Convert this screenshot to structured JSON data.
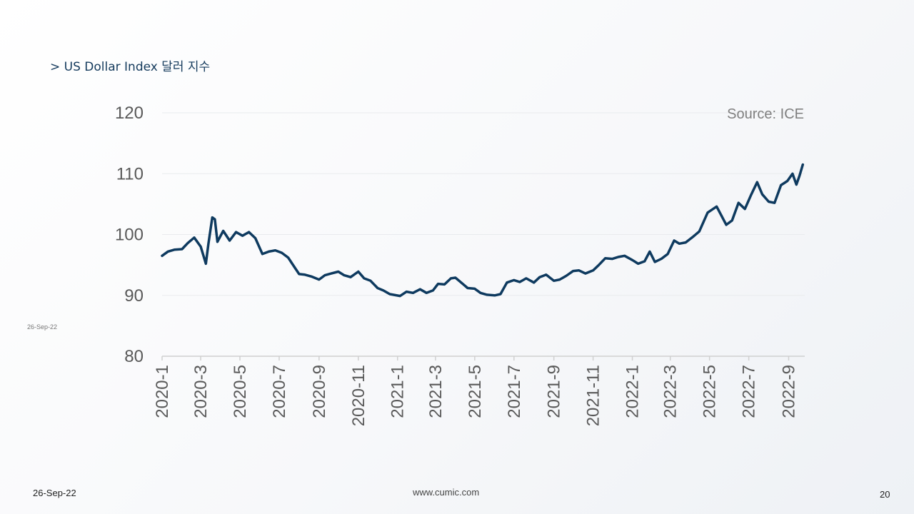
{
  "slide": {
    "title": "> US Dollar Index  달러 지수",
    "side_date": "26-Sep-22",
    "footer_date": "26-Sep-22",
    "footer_site": "www.cumic.com",
    "page_number": "20"
  },
  "colors": {
    "line": "#0e3a5f",
    "grid": "#e9ebee",
    "axis": "#d0d0d0",
    "title": "#143a5c"
  },
  "chart_data": {
    "type": "line",
    "title": "",
    "xlabel": "",
    "ylabel": "",
    "source": "Source: ICE",
    "ylim": [
      80,
      120
    ],
    "yticks": [
      "80",
      "90",
      "100",
      "110",
      "120"
    ],
    "grid": true,
    "xticks": [
      "2020-1",
      "2020-3",
      "2020-5",
      "2020-7",
      "2020-9",
      "2020-11",
      "2021-1",
      "2021-3",
      "2021-5",
      "2021-7",
      "2021-9",
      "2021-11",
      "2022-1",
      "2022-3",
      "2022-5",
      "2022-7",
      "2022-9"
    ],
    "series": [
      {
        "points": [
          [
            "2020-01-01",
            96.5
          ],
          [
            "2020-01-10",
            97.2
          ],
          [
            "2020-01-20",
            97.5
          ],
          [
            "2020-02-01",
            97.6
          ],
          [
            "2020-02-10",
            98.6
          ],
          [
            "2020-02-20",
            99.5
          ],
          [
            "2020-03-01",
            98.0
          ],
          [
            "2020-03-09",
            95.2
          ],
          [
            "2020-03-13",
            98.5
          ],
          [
            "2020-03-19",
            102.8
          ],
          [
            "2020-03-23",
            102.5
          ],
          [
            "2020-03-27",
            98.8
          ],
          [
            "2020-04-05",
            100.6
          ],
          [
            "2020-04-15",
            99.0
          ],
          [
            "2020-04-25",
            100.4
          ],
          [
            "2020-05-05",
            99.8
          ],
          [
            "2020-05-15",
            100.4
          ],
          [
            "2020-05-25",
            99.4
          ],
          [
            "2020-06-05",
            96.8
          ],
          [
            "2020-06-15",
            97.2
          ],
          [
            "2020-06-25",
            97.4
          ],
          [
            "2020-07-05",
            97.0
          ],
          [
            "2020-07-15",
            96.2
          ],
          [
            "2020-07-25",
            94.6
          ],
          [
            "2020-08-01",
            93.5
          ],
          [
            "2020-08-10",
            93.4
          ],
          [
            "2020-08-20",
            93.1
          ],
          [
            "2020-09-01",
            92.6
          ],
          [
            "2020-09-10",
            93.3
          ],
          [
            "2020-09-20",
            93.6
          ],
          [
            "2020-10-01",
            93.9
          ],
          [
            "2020-10-10",
            93.3
          ],
          [
            "2020-10-20",
            93.0
          ],
          [
            "2020-11-01",
            93.9
          ],
          [
            "2020-11-10",
            92.8
          ],
          [
            "2020-11-20",
            92.4
          ],
          [
            "2020-12-01",
            91.2
          ],
          [
            "2020-12-10",
            90.8
          ],
          [
            "2020-12-20",
            90.2
          ],
          [
            "2021-01-05",
            89.9
          ],
          [
            "2021-01-15",
            90.6
          ],
          [
            "2021-01-25",
            90.4
          ],
          [
            "2021-02-05",
            91.0
          ],
          [
            "2021-02-15",
            90.4
          ],
          [
            "2021-02-25",
            90.8
          ],
          [
            "2021-03-05",
            91.9
          ],
          [
            "2021-03-15",
            91.8
          ],
          [
            "2021-03-25",
            92.8
          ],
          [
            "2021-04-01",
            92.9
          ],
          [
            "2021-04-10",
            92.1
          ],
          [
            "2021-04-20",
            91.2
          ],
          [
            "2021-05-01",
            91.1
          ],
          [
            "2021-05-10",
            90.4
          ],
          [
            "2021-05-20",
            90.1
          ],
          [
            "2021-06-01",
            90.0
          ],
          [
            "2021-06-10",
            90.2
          ],
          [
            "2021-06-20",
            92.1
          ],
          [
            "2021-07-01",
            92.5
          ],
          [
            "2021-07-10",
            92.2
          ],
          [
            "2021-07-20",
            92.8
          ],
          [
            "2021-08-01",
            92.1
          ],
          [
            "2021-08-10",
            93.0
          ],
          [
            "2021-08-20",
            93.4
          ],
          [
            "2021-09-01",
            92.4
          ],
          [
            "2021-09-10",
            92.6
          ],
          [
            "2021-09-20",
            93.2
          ],
          [
            "2021-10-01",
            94.0
          ],
          [
            "2021-10-10",
            94.1
          ],
          [
            "2021-10-20",
            93.6
          ],
          [
            "2021-11-01",
            94.1
          ],
          [
            "2021-11-10",
            95.0
          ],
          [
            "2021-11-20",
            96.1
          ],
          [
            "2021-12-01",
            96.0
          ],
          [
            "2021-12-10",
            96.3
          ],
          [
            "2021-12-20",
            96.5
          ],
          [
            "2022-01-01",
            95.8
          ],
          [
            "2022-01-10",
            95.2
          ],
          [
            "2022-01-20",
            95.6
          ],
          [
            "2022-01-28",
            97.2
          ],
          [
            "2022-02-05",
            95.5
          ],
          [
            "2022-02-15",
            96.0
          ],
          [
            "2022-02-25",
            96.8
          ],
          [
            "2022-03-07",
            99.0
          ],
          [
            "2022-03-15",
            98.5
          ],
          [
            "2022-03-25",
            98.7
          ],
          [
            "2022-04-05",
            99.6
          ],
          [
            "2022-04-15",
            100.5
          ],
          [
            "2022-04-28",
            103.6
          ],
          [
            "2022-05-12",
            104.6
          ],
          [
            "2022-05-20",
            103.0
          ],
          [
            "2022-05-27",
            101.6
          ],
          [
            "2022-06-05",
            102.3
          ],
          [
            "2022-06-15",
            105.2
          ],
          [
            "2022-06-25",
            104.2
          ],
          [
            "2022-07-05",
            106.6
          ],
          [
            "2022-07-14",
            108.6
          ],
          [
            "2022-07-22",
            106.6
          ],
          [
            "2022-08-01",
            105.4
          ],
          [
            "2022-08-10",
            105.2
          ],
          [
            "2022-08-20",
            108.1
          ],
          [
            "2022-08-30",
            108.8
          ],
          [
            "2022-09-07",
            110.0
          ],
          [
            "2022-09-13",
            108.2
          ],
          [
            "2022-09-18",
            109.7
          ],
          [
            "2022-09-23",
            111.5
          ]
        ]
      }
    ]
  }
}
